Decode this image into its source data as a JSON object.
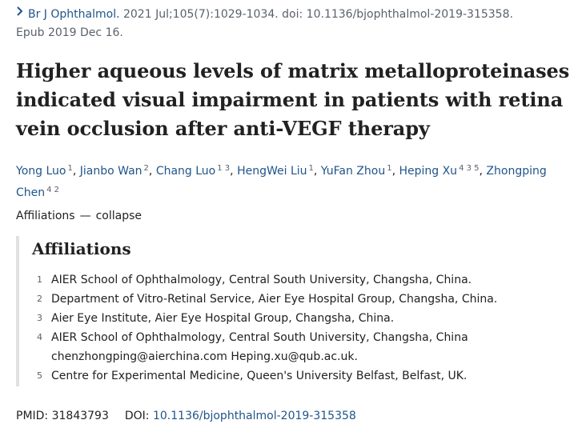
{
  "citation": {
    "journal": "Br J Ophthalmol.",
    "details": " 2021 Jul;105(7):1029-1034. doi: 10.1136/bjophthalmol-2019-315358.",
    "epub": "Epub 2019 Dec 16."
  },
  "title": "Higher aqueous levels of matrix metalloproteinases indicated visual impairment in patients with retina vein occlusion after anti-VEGF therapy",
  "authors": [
    {
      "name": "Yong Luo",
      "affs": "1",
      "sep": ", "
    },
    {
      "name": "Jianbo Wan",
      "affs": "2",
      "sep": ", "
    },
    {
      "name": "Chang Luo",
      "affs": "1 3",
      "sep": ", "
    },
    {
      "name": "HengWei Liu",
      "affs": "1",
      "sep": ", "
    },
    {
      "name": "YuFan Zhou",
      "affs": "1",
      "sep": ", "
    },
    {
      "name": "Heping Xu",
      "affs": "4 3 5",
      "sep": ", "
    },
    {
      "name": "Zhongping Chen",
      "affs": "4 2",
      "sep": ""
    }
  ],
  "affiliations_toggle": {
    "label": "Affiliations",
    "dash": "—",
    "action": "collapse"
  },
  "affiliations": {
    "heading": "Affiliations",
    "items": [
      {
        "num": "1",
        "text": "AIER School of Ophthalmology, Central South University, Changsha, China."
      },
      {
        "num": "2",
        "text": "Department of Vitro-Retinal Service, Aier Eye Hospital Group, Changsha, China."
      },
      {
        "num": "3",
        "text": "Aier Eye Institute, Aier Eye Hospital Group, Changsha, China."
      },
      {
        "num": "4",
        "text": "AIER School of Ophthalmology, Central South University, Changsha, China chenzhongping@aierchina.com Heping.xu@qub.ac.uk."
      },
      {
        "num": "5",
        "text": "Centre for Experimental Medicine, Queen's University Belfast, Belfast, UK."
      }
    ]
  },
  "identifiers": {
    "pmid_label": "PMID:",
    "pmid": "31843793",
    "doi_label": "DOI:",
    "doi": "10.1136/bjophthalmol-2019-315358"
  },
  "icons": {
    "citation_chevron": "chevron-right-icon"
  },
  "colors": {
    "link": "#20558a",
    "muted": "#5b616b",
    "text": "#212121",
    "border": "#dfe1e2"
  }
}
